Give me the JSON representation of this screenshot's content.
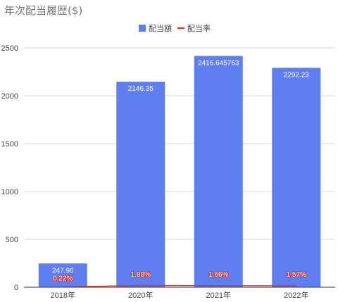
{
  "chart_data": {
    "type": "bar",
    "title": "年次配当履歴($)",
    "categories": [
      "2018年",
      "2020年",
      "2021年",
      "2022年"
    ],
    "series": [
      {
        "name": "配当額",
        "type": "bar",
        "color": "#5f7ef0",
        "values": [
          247.96,
          2146.35,
          2416.645763,
          2292.23
        ],
        "labels": [
          "247.96",
          "2146.35",
          "2416.645763",
          "2292.23"
        ]
      },
      {
        "name": "配当率",
        "type": "line",
        "color": "#d23f31",
        "values": [
          0.22,
          1.88,
          1.66,
          1.57
        ],
        "labels": [
          "0.22%",
          "1.88%",
          "1.66%",
          "1.57%"
        ]
      }
    ],
    "ylim": [
      0,
      2500
    ],
    "yticks": [
      "0",
      "500",
      "1000",
      "1500",
      "2000",
      "2500"
    ],
    "grid": true,
    "legend_position": "top-center"
  }
}
